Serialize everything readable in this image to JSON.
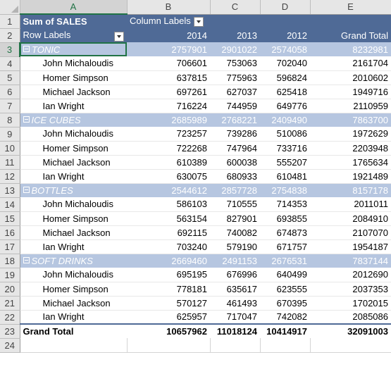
{
  "columns": [
    "A",
    "B",
    "C",
    "D",
    "E"
  ],
  "selected_column": "A",
  "selected_row": "3",
  "header": {
    "row1": {
      "num": "1",
      "title": "Sum of SALES",
      "col_labels": "Column Labels"
    },
    "row2": {
      "num": "2",
      "row_labels": "Row Labels",
      "y2014": "2014",
      "y2013": "2013",
      "y2012": "2012",
      "grand_total": "Grand Total"
    }
  },
  "rows": [
    {
      "num": "3",
      "label": "TONIC",
      "v2014": "2757901",
      "v2013": "2901022",
      "v2012": "2574058",
      "total": "8232981"
    },
    {
      "num": "4",
      "label": "John Michaloudis",
      "v2014": "706601",
      "v2013": "753063",
      "v2012": "702040",
      "total": "2161704"
    },
    {
      "num": "5",
      "label": "Homer Simpson",
      "v2014": "637815",
      "v2013": "775963",
      "v2012": "596824",
      "total": "2010602"
    },
    {
      "num": "6",
      "label": "Michael Jackson",
      "v2014": "697261",
      "v2013": "627037",
      "v2012": "625418",
      "total": "1949716"
    },
    {
      "num": "7",
      "label": "Ian Wright",
      "v2014": "716224",
      "v2013": "744959",
      "v2012": "649776",
      "total": "2110959"
    },
    {
      "num": "8",
      "label": "ICE CUBES",
      "v2014": "2685989",
      "v2013": "2768221",
      "v2012": "2409490",
      "total": "7863700"
    },
    {
      "num": "9",
      "label": "John Michaloudis",
      "v2014": "723257",
      "v2013": "739286",
      "v2012": "510086",
      "total": "1972629"
    },
    {
      "num": "10",
      "label": "Homer Simpson",
      "v2014": "722268",
      "v2013": "747964",
      "v2012": "733716",
      "total": "2203948"
    },
    {
      "num": "11",
      "label": "Michael Jackson",
      "v2014": "610389",
      "v2013": "600038",
      "v2012": "555207",
      "total": "1765634"
    },
    {
      "num": "12",
      "label": "Ian Wright",
      "v2014": "630075",
      "v2013": "680933",
      "v2012": "610481",
      "total": "1921489"
    },
    {
      "num": "13",
      "label": "BOTTLES",
      "v2014": "2544612",
      "v2013": "2857728",
      "v2012": "2754838",
      "total": "8157178"
    },
    {
      "num": "14",
      "label": "John Michaloudis",
      "v2014": "586103",
      "v2013": "710555",
      "v2012": "714353",
      "total": "2011011"
    },
    {
      "num": "15",
      "label": "Homer Simpson",
      "v2014": "563154",
      "v2013": "827901",
      "v2012": "693855",
      "total": "2084910"
    },
    {
      "num": "16",
      "label": "Michael Jackson",
      "v2014": "692115",
      "v2013": "740082",
      "v2012": "674873",
      "total": "2107070"
    },
    {
      "num": "17",
      "label": "Ian Wright",
      "v2014": "703240",
      "v2013": "579190",
      "v2012": "671757",
      "total": "1954187"
    },
    {
      "num": "18",
      "label": "SOFT DRINKS",
      "v2014": "2669460",
      "v2013": "2491153",
      "v2012": "2676531",
      "total": "7837144"
    },
    {
      "num": "19",
      "label": "John Michaloudis",
      "v2014": "695195",
      "v2013": "676996",
      "v2012": "640499",
      "total": "2012690"
    },
    {
      "num": "20",
      "label": "Homer Simpson",
      "v2014": "778181",
      "v2013": "635617",
      "v2012": "623555",
      "total": "2037353"
    },
    {
      "num": "21",
      "label": "Michael Jackson",
      "v2014": "570127",
      "v2013": "461493",
      "v2012": "670395",
      "total": "1702015"
    },
    {
      "num": "22",
      "label": "Ian Wright",
      "v2014": "625957",
      "v2013": "717047",
      "v2012": "742082",
      "total": "2085086"
    }
  ],
  "grand_total_row": {
    "num": "23",
    "label": "Grand Total",
    "v2014": "10657962",
    "v2013": "11018124",
    "v2012": "10414917",
    "total": "32091003"
  },
  "empty_row": {
    "num": "24"
  },
  "colors": {
    "header_band": "#4f6a96",
    "category_band": "#b6c6e0",
    "selection": "#217346"
  }
}
